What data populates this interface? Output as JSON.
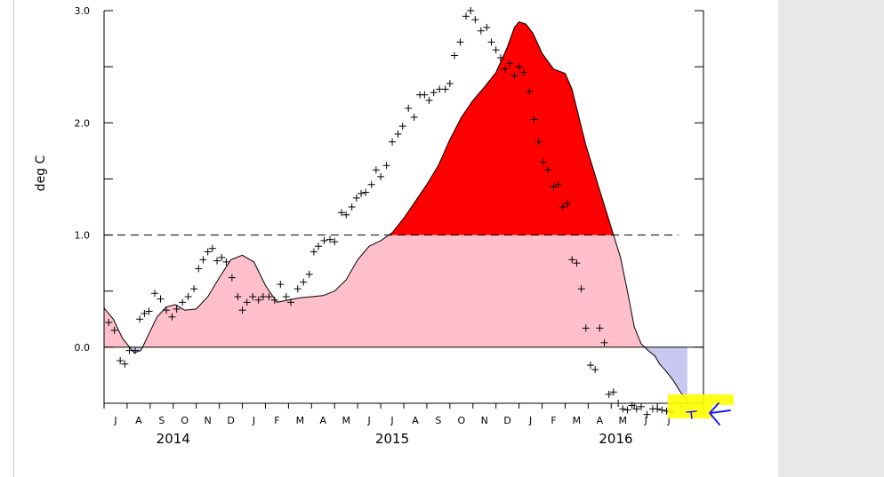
{
  "colors": {
    "above_threshold_fill": "#ff0000",
    "positive_fill": "#ffc0cb",
    "negative_fill": "#c8c8f0",
    "highlight": "#ffff00",
    "annotation_arrow": "#1a1aff",
    "side_panel": "#e9e9e9"
  },
  "chart_data": {
    "type": "area",
    "ylabel": "deg C",
    "ylim": [
      -0.5,
      3.0
    ],
    "xlim": [
      0,
      26
    ],
    "y_ticks": [
      {
        "value": 0.0,
        "label": "0.0"
      },
      {
        "value": 1.0,
        "label": "1.0"
      },
      {
        "value": 2.0,
        "label": "2.0"
      },
      {
        "value": 3.0,
        "label": "3.0"
      }
    ],
    "month_labels": [
      "J",
      "A",
      "S",
      "O",
      "N",
      "D",
      "J",
      "F",
      "M",
      "A",
      "M",
      "J",
      "J",
      "A",
      "S",
      "O",
      "N",
      "D",
      "J",
      "F",
      "M",
      "A",
      "M",
      "J",
      "J"
    ],
    "year_labels": [
      {
        "label": "2014",
        "x": 3.0
      },
      {
        "label": "2015",
        "x": 12.5
      },
      {
        "label": "2016",
        "x": 22.2
      }
    ],
    "threshold": 1.0,
    "smoothed_series": {
      "x": [
        0.0,
        0.4,
        0.8,
        1.3,
        1.6,
        1.9,
        2.3,
        2.7,
        3.1,
        3.5,
        4.0,
        4.5,
        5.0,
        5.5,
        6.0,
        6.5,
        7.0,
        7.5,
        8.0,
        8.5,
        9.0,
        9.5,
        10.0,
        10.5,
        11.0,
        11.5,
        12.0,
        12.5,
        13.0,
        13.5,
        14.0,
        14.5,
        15.0,
        15.5,
        16.0,
        16.5,
        17.0,
        17.5,
        17.8,
        18.0,
        18.3,
        18.6,
        19.0,
        19.5,
        20.0,
        20.3,
        20.6,
        20.9,
        21.2,
        21.5,
        21.8,
        22.1,
        22.4,
        22.7,
        23.0,
        23.3,
        23.6,
        23.9,
        24.1,
        24.4,
        24.7,
        25.0,
        25.3
      ],
      "values": [
        0.35,
        0.25,
        0.08,
        -0.05,
        -0.03,
        0.1,
        0.27,
        0.36,
        0.38,
        0.33,
        0.34,
        0.45,
        0.62,
        0.78,
        0.82,
        0.76,
        0.55,
        0.4,
        0.42,
        0.44,
        0.45,
        0.46,
        0.5,
        0.6,
        0.78,
        0.9,
        0.95,
        1.02,
        1.15,
        1.3,
        1.45,
        1.62,
        1.85,
        2.05,
        2.2,
        2.32,
        2.45,
        2.68,
        2.85,
        2.9,
        2.88,
        2.8,
        2.62,
        2.48,
        2.44,
        2.3,
        2.05,
        1.8,
        1.6,
        1.4,
        1.2,
        1.0,
        0.8,
        0.5,
        0.18,
        0.03,
        -0.03,
        -0.08,
        -0.15,
        -0.22,
        -0.3,
        -0.4,
        -0.48
      ]
    },
    "observations": {
      "x": [
        0.2,
        0.45,
        0.7,
        0.9,
        1.1,
        1.35,
        1.55,
        1.75,
        1.95,
        2.2,
        2.45,
        2.7,
        2.95,
        3.15,
        3.4,
        3.65,
        3.9,
        4.1,
        4.3,
        4.5,
        4.7,
        4.9,
        5.1,
        5.3,
        5.55,
        5.8,
        6.0,
        6.2,
        6.45,
        6.7,
        6.9,
        7.15,
        7.4,
        7.65,
        7.9,
        8.1,
        8.4,
        8.65,
        8.9,
        9.1,
        9.3,
        9.55,
        9.8,
        10.0,
        10.3,
        10.5,
        10.75,
        10.95,
        11.15,
        11.35,
        11.6,
        11.8,
        12.0,
        12.25,
        12.5,
        12.75,
        12.95,
        13.2,
        13.45,
        13.7,
        13.9,
        14.1,
        14.3,
        14.55,
        14.8,
        15.0,
        15.2,
        15.45,
        15.7,
        15.9,
        16.1,
        16.35,
        16.6,
        16.8,
        17.0,
        17.2,
        17.4,
        17.6,
        17.8,
        18.0,
        18.2,
        18.45,
        18.65,
        18.85,
        19.05,
        19.25,
        19.5,
        19.7,
        19.9,
        20.1,
        20.3,
        20.5,
        20.7,
        20.9,
        21.1,
        21.3,
        21.5,
        21.7,
        21.9,
        22.1,
        22.3,
        22.5,
        22.7,
        22.9,
        23.1,
        23.3,
        23.55,
        23.8,
        24.0,
        24.2,
        24.4,
        24.6
      ],
      "values": [
        0.22,
        0.15,
        -0.12,
        -0.15,
        -0.03,
        -0.03,
        0.25,
        0.3,
        0.32,
        0.48,
        0.43,
        0.33,
        0.27,
        0.34,
        0.4,
        0.45,
        0.52,
        0.7,
        0.78,
        0.85,
        0.88,
        0.77,
        0.8,
        0.76,
        0.62,
        0.45,
        0.33,
        0.4,
        0.45,
        0.42,
        0.45,
        0.45,
        0.42,
        0.56,
        0.45,
        0.4,
        0.52,
        0.58,
        0.65,
        0.85,
        0.9,
        0.95,
        0.96,
        0.94,
        1.2,
        1.18,
        1.25,
        1.33,
        1.37,
        1.38,
        1.45,
        1.58,
        1.52,
        1.62,
        1.83,
        1.9,
        1.97,
        2.13,
        2.05,
        2.25,
        2.25,
        2.2,
        2.27,
        2.3,
        2.3,
        2.35,
        2.6,
        2.72,
        2.95,
        3.0,
        2.92,
        2.82,
        2.85,
        2.72,
        2.65,
        2.58,
        2.48,
        2.53,
        2.42,
        2.5,
        2.45,
        2.28,
        2.03,
        1.83,
        1.65,
        1.58,
        1.43,
        1.45,
        1.25,
        1.28,
        0.78,
        0.75,
        0.52,
        0.17,
        -0.16,
        -0.2,
        0.17,
        0.04,
        -0.42,
        -0.4,
        -0.5,
        -0.55,
        -0.56,
        -0.52,
        -0.55,
        -0.53,
        -0.6,
        -0.55,
        -0.55,
        -0.56,
        -0.57,
        -0.58
      ]
    }
  }
}
